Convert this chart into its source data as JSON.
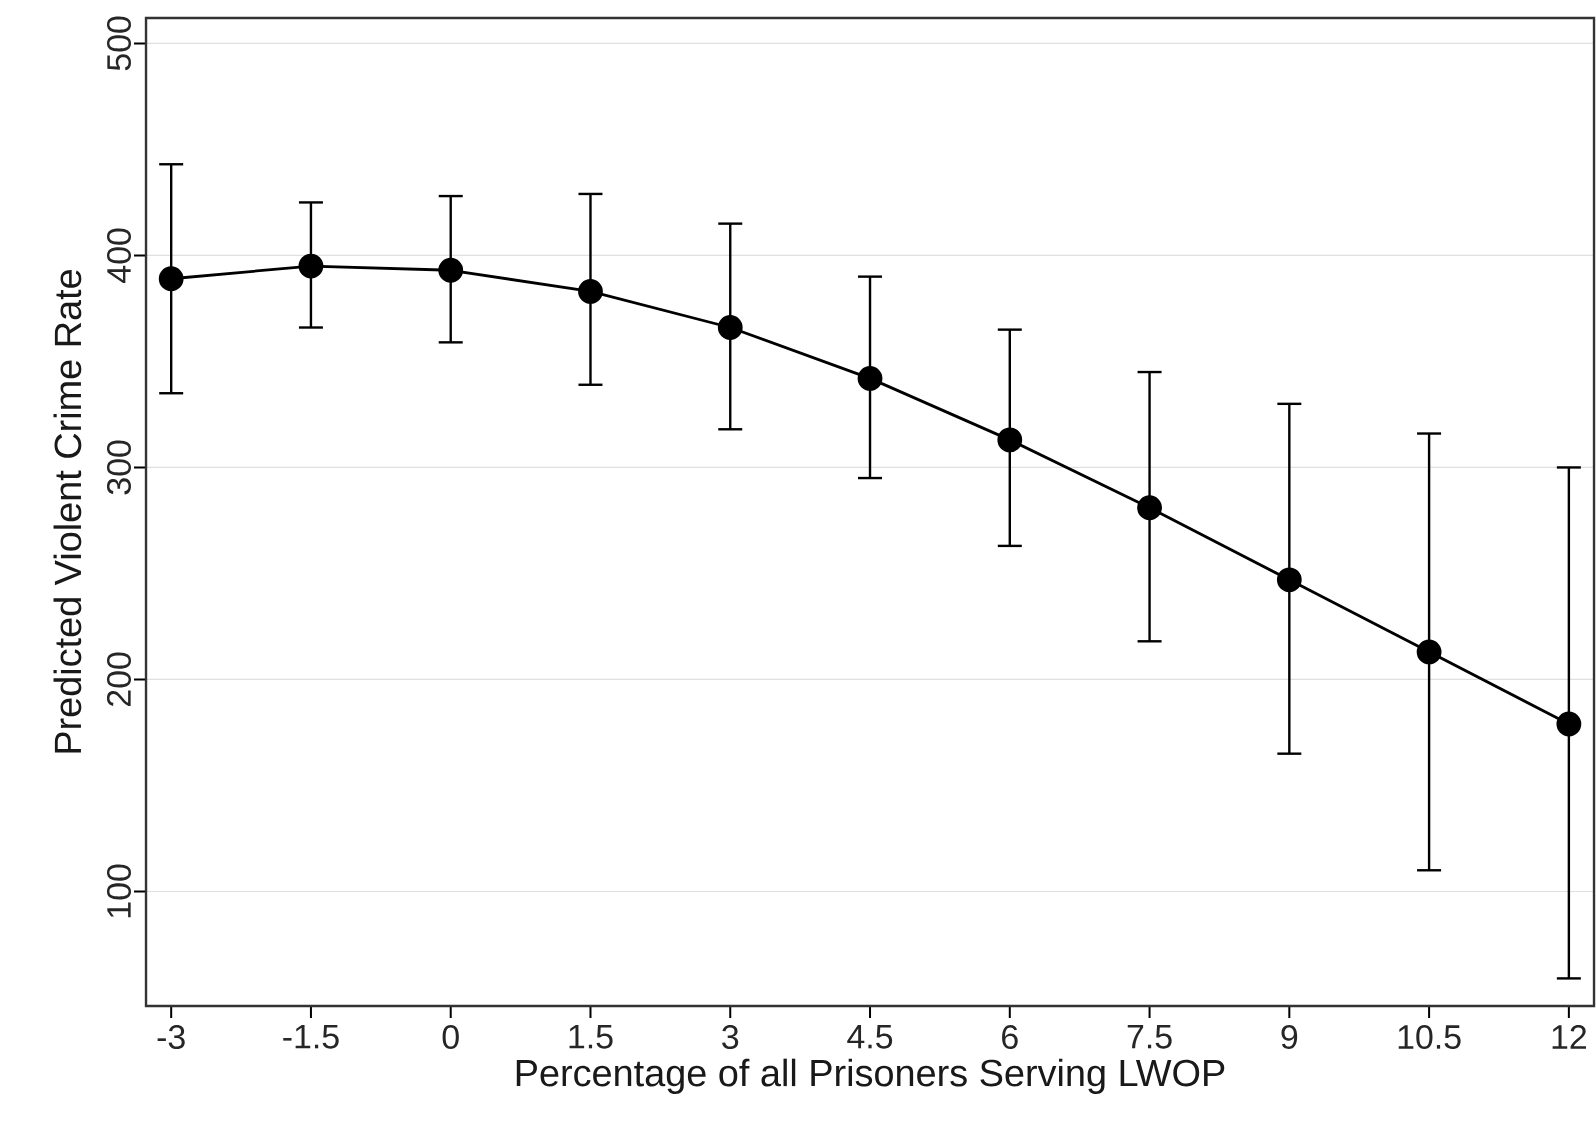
{
  "chart_data": {
    "type": "line",
    "xlabel": "Percentage of all Prisoners Serving LWOP",
    "ylabel": "Predicted Violent Crime Rate",
    "x": [
      -3,
      -1.5,
      0,
      1.5,
      3,
      4.5,
      6,
      7.5,
      9,
      10.5,
      12
    ],
    "series": [
      {
        "color": "#000000",
        "values": [
          389,
          395,
          393,
          383,
          366,
          342,
          313,
          281,
          247,
          213,
          179
        ],
        "errors": [
          [
            335,
            443
          ],
          [
            366,
            425
          ],
          [
            359,
            428
          ],
          [
            339,
            429
          ],
          [
            318,
            415
          ],
          [
            295,
            390
          ],
          [
            263,
            365
          ],
          [
            218,
            345
          ],
          [
            165,
            330
          ],
          [
            110,
            316
          ],
          [
            59,
            300
          ]
        ]
      }
    ],
    "xlim": [
      -3.27,
      12.27
    ],
    "ylim": [
      46,
      512
    ],
    "xticks": [
      -3,
      -1.5,
      0,
      1.5,
      3,
      4.5,
      6,
      7.5,
      9,
      10.5,
      12
    ],
    "yticks": [
      100,
      200,
      300,
      400,
      500
    ],
    "grid": "y",
    "marker": "circle",
    "line_style": "solid"
  }
}
